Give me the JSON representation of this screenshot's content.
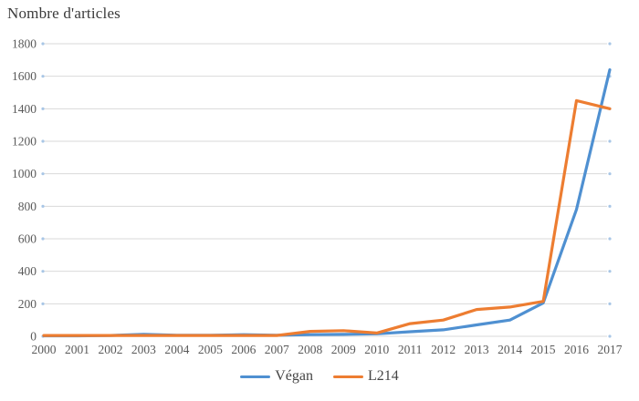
{
  "title": "Nombre d'articles",
  "legend": {
    "vegan_label": "Végan",
    "l214_label": "L214"
  },
  "colors": {
    "background": "#ffffff",
    "gridline": "#d9d9d9",
    "tick_dot": "#a8c6e6",
    "axis_text": "#595959",
    "title_text": "#3b3b3b",
    "vegan_blue": "#4f90d1",
    "l214_orange": "#ed7d31"
  },
  "chart_data": {
    "type": "line",
    "title": "Nombre d'articles",
    "xlabel": "",
    "ylabel": "Nombre d'articles",
    "grid": true,
    "legend_position": "bottom",
    "ylim": [
      0,
      1800
    ],
    "yticks": [
      0,
      200,
      400,
      600,
      800,
      1000,
      1200,
      1400,
      1600,
      1800
    ],
    "categories": [
      "2000",
      "2001",
      "2002",
      "2003",
      "2004",
      "2005",
      "2006",
      "2007",
      "2008",
      "2009",
      "2010",
      "2011",
      "2012",
      "2013",
      "2014",
      "2015",
      "2016",
      "2017"
    ],
    "series": [
      {
        "name": "Végan",
        "color": "#4f90d1",
        "values": [
          3,
          3,
          5,
          12,
          6,
          6,
          10,
          6,
          10,
          12,
          15,
          28,
          40,
          70,
          100,
          205,
          780,
          1640
        ]
      },
      {
        "name": "L214",
        "color": "#ed7d31",
        "values": [
          5,
          5,
          5,
          5,
          5,
          5,
          5,
          5,
          30,
          35,
          20,
          78,
          100,
          165,
          180,
          215,
          1450,
          1400
        ]
      }
    ]
  }
}
